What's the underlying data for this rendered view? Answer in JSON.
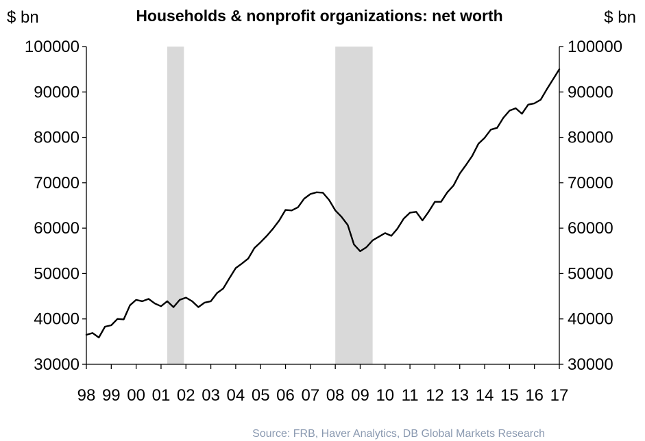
{
  "chart_data": {
    "type": "line",
    "title": "Households & nonprofit organizations: net worth",
    "ylabel_left": "$ bn",
    "ylabel_right": "$ bn",
    "source": "Source: FRB, Haver Analytics, DB Global Markets Research",
    "ylim": [
      30000,
      100000
    ],
    "yticks": [
      30000,
      40000,
      50000,
      60000,
      70000,
      80000,
      90000,
      100000
    ],
    "xlim": [
      1998.0,
      2017.0
    ],
    "xtick_labels": [
      "98",
      "99",
      "00",
      "01",
      "02",
      "03",
      "04",
      "05",
      "06",
      "07",
      "08",
      "09",
      "10",
      "11",
      "12",
      "13",
      "14",
      "15",
      "16",
      "17"
    ],
    "grid": false,
    "legend": "none",
    "line_color": "#000000",
    "shade_color": "#d9d9d9",
    "recessions": [
      {
        "start": 2001.25,
        "end": 2001.92
      },
      {
        "start": 2008.0,
        "end": 2009.5
      }
    ],
    "series": [
      {
        "x": [
          1998.0,
          1998.25,
          1998.5,
          1998.75,
          1999.0,
          1999.25,
          1999.5,
          1999.75,
          2000.0,
          2000.25,
          2000.5,
          2000.75,
          2001.0,
          2001.25,
          2001.5,
          2001.75,
          2002.0,
          2002.25,
          2002.5,
          2002.75,
          2003.0,
          2003.25,
          2003.5,
          2003.75,
          2004.0,
          2004.25,
          2004.5,
          2004.75,
          2005.0,
          2005.25,
          2005.5,
          2005.75,
          2006.0,
          2006.25,
          2006.5,
          2006.75,
          2007.0,
          2007.25,
          2007.5,
          2007.75,
          2008.0,
          2008.25,
          2008.5,
          2008.75,
          2009.0,
          2009.25,
          2009.5,
          2009.75,
          2010.0,
          2010.25,
          2010.5,
          2010.75,
          2011.0,
          2011.25,
          2011.5,
          2011.75,
          2012.0,
          2012.25,
          2012.5,
          2012.75,
          2013.0,
          2013.25,
          2013.5,
          2013.75,
          2014.0,
          2014.25,
          2014.5,
          2014.75,
          2015.0,
          2015.25,
          2015.5,
          2015.75,
          2016.0,
          2016.25,
          2016.5,
          2016.75,
          2017.0
        ],
        "values": [
          36500,
          36900,
          35900,
          38300,
          38600,
          40000,
          39900,
          43000,
          44200,
          43900,
          44400,
          43400,
          42800,
          43900,
          42600,
          44200,
          44700,
          43900,
          42600,
          43600,
          43900,
          45700,
          46700,
          49000,
          51200,
          52200,
          53300,
          55600,
          56900,
          58300,
          59900,
          61700,
          64000,
          63900,
          64600,
          66500,
          67500,
          67900,
          67800,
          66200,
          63900,
          62500,
          60700,
          56400,
          54900,
          55800,
          57300,
          58100,
          58900,
          58300,
          59900,
          62100,
          63400,
          63600,
          61700,
          63600,
          65800,
          65800,
          67900,
          69400,
          72000,
          73900,
          75900,
          78600,
          79900,
          81700,
          82100,
          84300,
          85900,
          86400,
          85200,
          87200,
          87500,
          88300,
          90600,
          92800,
          95000
        ]
      }
    ]
  }
}
